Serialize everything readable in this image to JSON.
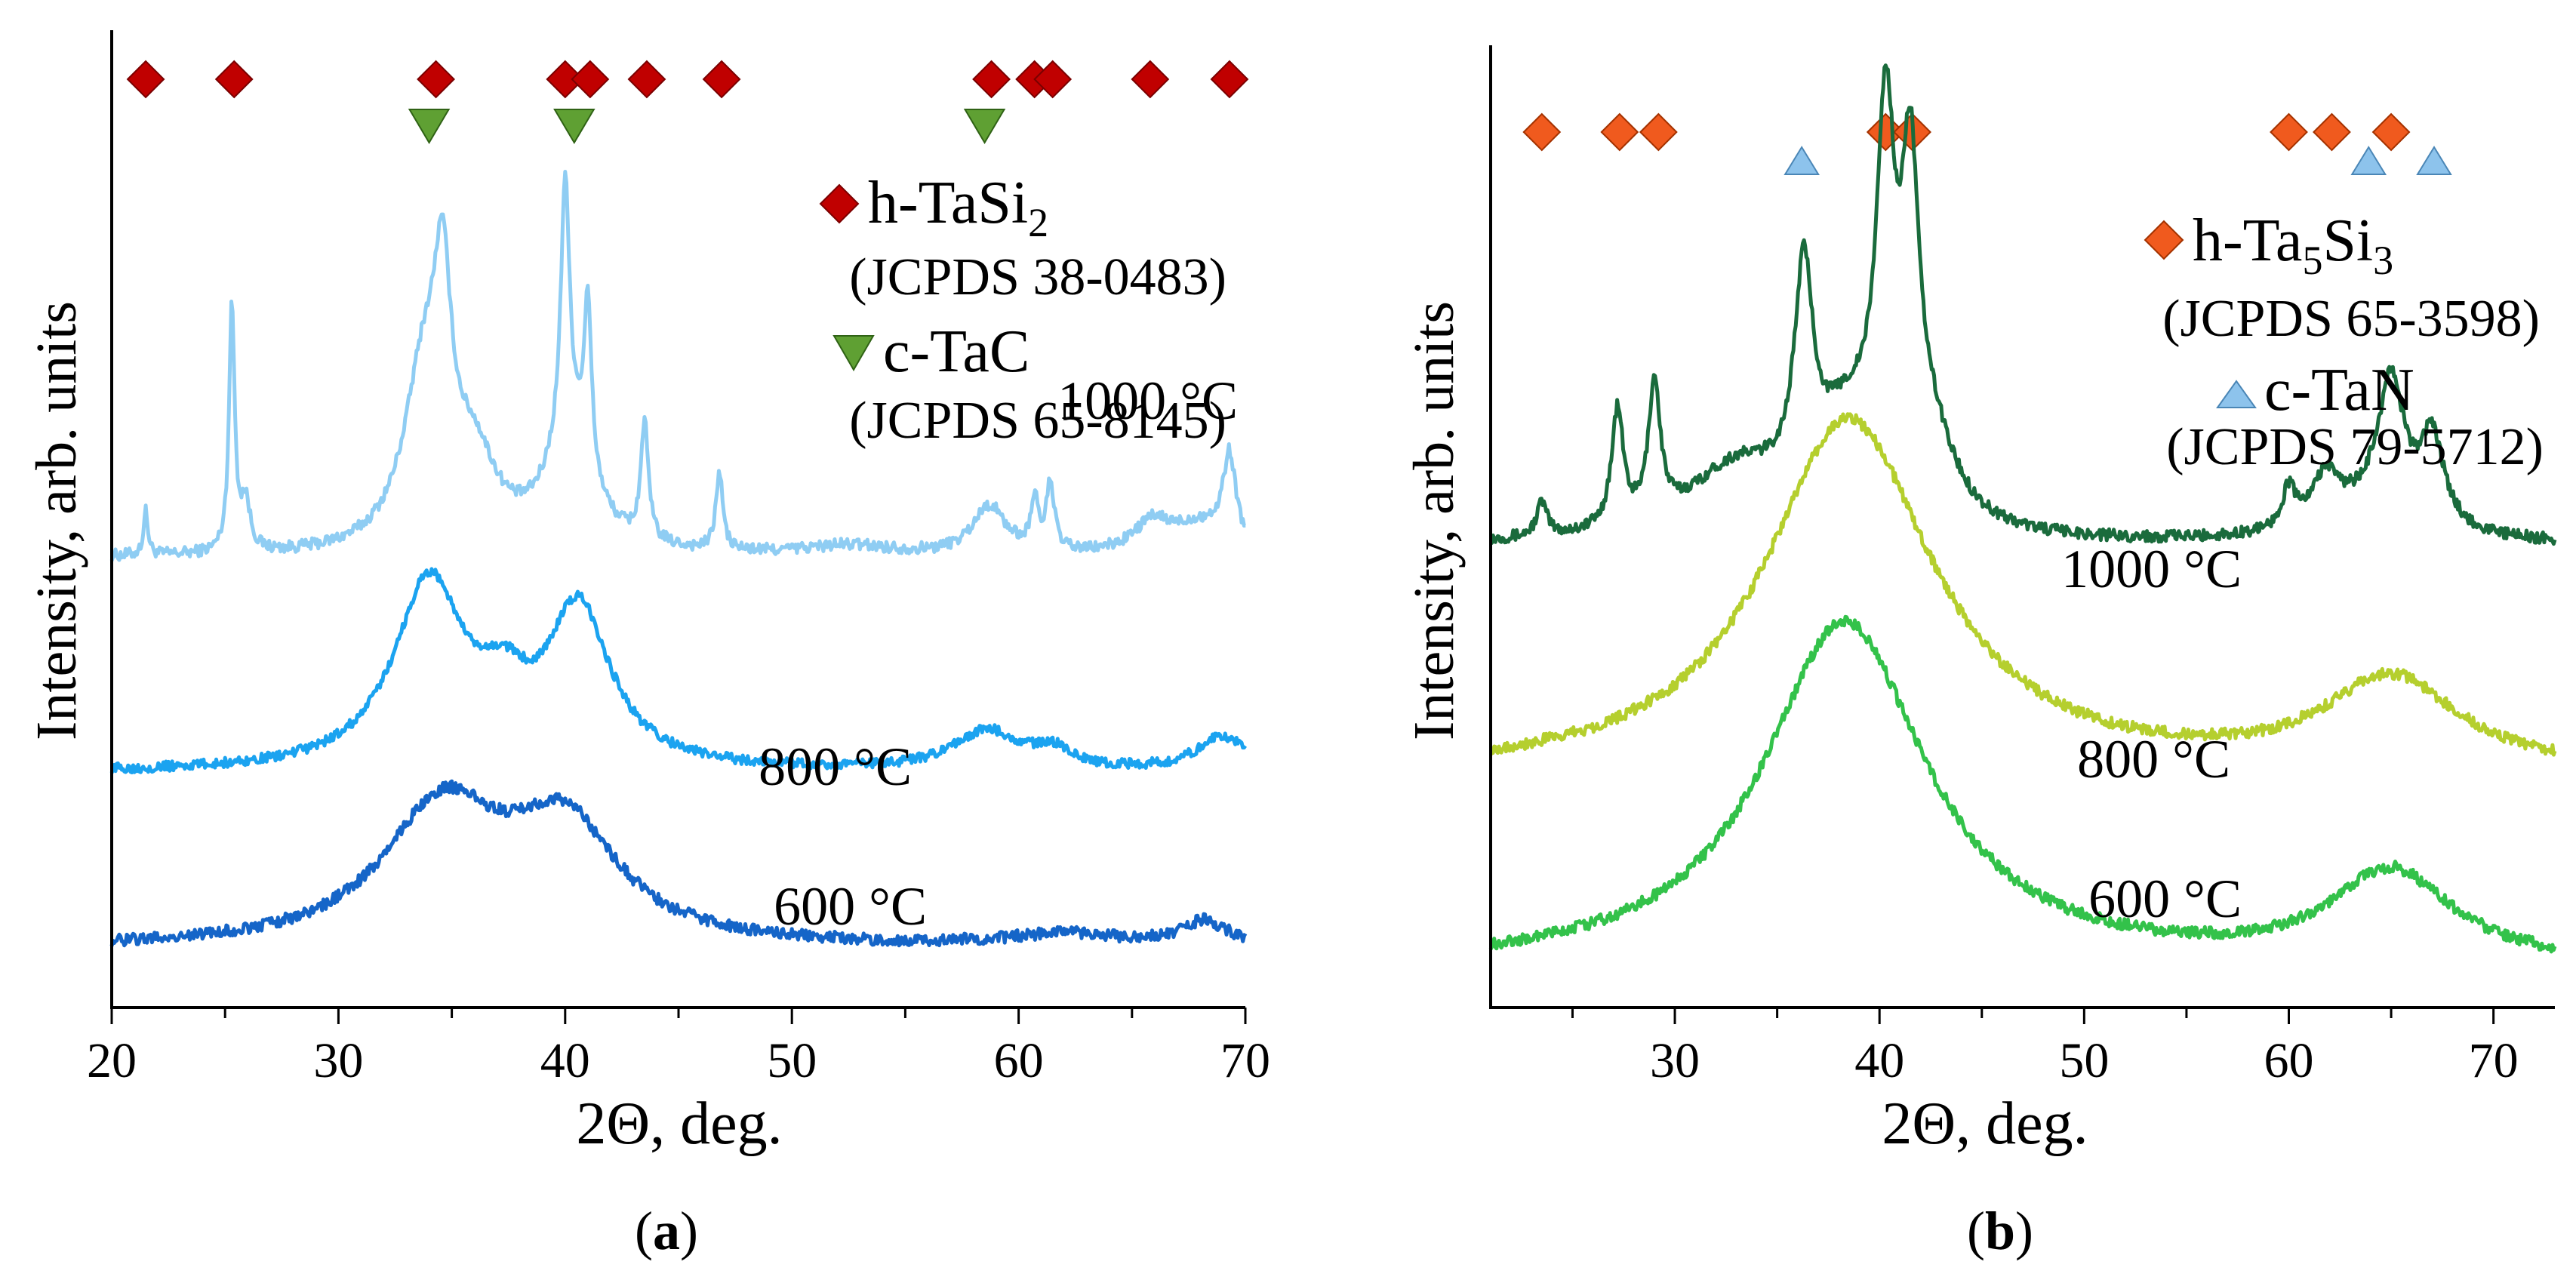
{
  "chart_data": [
    {
      "type": "line",
      "panel_label": "(a)",
      "xlabel": "2Θ, deg.",
      "ylabel": "Intensity, arb. units",
      "xlim": [
        20,
        70
      ],
      "x_ticks": [
        20,
        30,
        40,
        50,
        60,
        70
      ],
      "y_ticks_labeled": false,
      "series": [
        {
          "name": "1000 °C",
          "color": "#8fcdf3",
          "baseline": 0.46,
          "noise": 0.006,
          "peaks": [
            [
              21.5,
              0.045,
              0.12
            ],
            [
              25.3,
              0.25,
              0.15
            ],
            [
              25.9,
              0.05,
              0.25
            ],
            [
              33.8,
              0.18,
              1.1
            ],
            [
              34.6,
              0.19,
              0.45
            ],
            [
              36.0,
              0.08,
              1.2
            ],
            [
              40.0,
              0.26,
              0.22
            ],
            [
              41.0,
              0.17,
              0.2
            ],
            [
              40.2,
              0.12,
              1.2
            ],
            [
              43.5,
              0.12,
              0.2
            ],
            [
              46.8,
              0.08,
              0.18
            ],
            [
              52.5,
              0.01,
              2.5
            ],
            [
              58.7,
              0.05,
              0.9
            ],
            [
              60.7,
              0.05,
              0.2
            ],
            [
              61.4,
              0.07,
              0.2
            ],
            [
              65.9,
              0.03,
              1.0
            ],
            [
              69.3,
              0.09,
              0.35
            ],
            [
              68.0,
              0.03,
              1.5
            ]
          ]
        },
        {
          "name": "800 °C",
          "color": "#1ba3f0",
          "baseline": 0.24,
          "noise": 0.005,
          "peaks": [
            [
              34.0,
              0.19,
              1.9
            ],
            [
              40.6,
              0.16,
              1.7
            ],
            [
              37.3,
              0.05,
              1.2
            ],
            [
              58.6,
              0.04,
              1.8
            ],
            [
              61.5,
              0.018,
              1.0
            ],
            [
              69.0,
              0.035,
              1.4
            ]
          ]
        },
        {
          "name": "600 °C",
          "color": "#1565c8",
          "baseline": 0.06,
          "noise": 0.006,
          "peaks": [
            [
              34.6,
              0.14,
              3.2
            ],
            [
              40.0,
              0.115,
              2.8
            ],
            [
              62.0,
              0.012,
              3.0
            ],
            [
              68.2,
              0.025,
              1.3
            ]
          ]
        }
      ],
      "series_labels": [
        "1000 °C",
        "800 °C",
        "600 °C"
      ],
      "markers": {
        "h_TaSi2": [
          21.5,
          25.4,
          34.3,
          40.0,
          41.1,
          43.6,
          46.9,
          58.8,
          60.7,
          61.5,
          65.8,
          69.3
        ],
        "c_TaC": [
          34.0,
          40.4,
          58.5
        ]
      },
      "legend": {
        "position": "top-right",
        "entries": [
          {
            "symbol": "diamond",
            "color": "#c00000",
            "label": "h-TaSi",
            "sub": "2",
            "ref": "(JCPDS 38-0483)"
          },
          {
            "symbol": "triangle-down",
            "color": "#5fa033",
            "label": "c-TaC",
            "sub": "",
            "ref": "(JCPDS 65-8145)"
          }
        ]
      }
    },
    {
      "type": "line",
      "panel_label": "(b)",
      "xlabel": "2Θ, deg.",
      "ylabel": "Intensity, arb. units",
      "xlim": [
        21,
        73
      ],
      "x_ticks": [
        30,
        40,
        50,
        60,
        70
      ],
      "y_ticks_labeled": false,
      "series": [
        {
          "name": "1000 °C",
          "color": "#1a6b3c",
          "baseline": 0.48,
          "noise": 0.006,
          "peaks": [
            [
              23.5,
              0.035,
              0.3
            ],
            [
              27.2,
              0.12,
              0.35
            ],
            [
              29.0,
              0.14,
              0.35
            ],
            [
              33.0,
              0.07,
              3.0
            ],
            [
              36.3,
              0.22,
              0.55
            ],
            [
              38.5,
              0.1,
              2.0
            ],
            [
              40.3,
              0.36,
              0.55
            ],
            [
              41.5,
              0.3,
              0.5
            ],
            [
              42.5,
              0.08,
              1.5
            ],
            [
              60.0,
              0.04,
              0.4
            ],
            [
              61.8,
              0.05,
              0.8
            ],
            [
              65.0,
              0.14,
              0.8
            ],
            [
              67.0,
              0.09,
              0.7
            ],
            [
              64.0,
              0.03,
              3.0
            ]
          ]
        },
        {
          "name": "800 °C",
          "color": "#b5cf2e",
          "baseline": 0.24,
          "noise": 0.006,
          "peaks": [
            [
              38.5,
              0.37,
              5.0
            ],
            [
              65.0,
              0.095,
              4.0
            ]
          ]
        },
        {
          "name": "600 °C",
          "color": "#33c24a",
          "baseline": 0.04,
          "noise": 0.006,
          "peaks": [
            [
              38.3,
              0.36,
              4.8
            ],
            [
              65.0,
              0.095,
              3.6
            ]
          ]
        }
      ],
      "series_labels": [
        "1000 °C",
        "800 °C",
        "600 °C"
      ],
      "markers": {
        "h_Ta5Si3": [
          23.5,
          27.3,
          29.2,
          40.3,
          41.6,
          60.0,
          62.1,
          65.0
        ],
        "c_TaN": [
          36.2,
          63.9,
          67.1
        ]
      },
      "legend": {
        "position": "top-right",
        "entries": [
          {
            "symbol": "diamond",
            "color": "#f05a1e",
            "label": "h-Ta",
            "sub": "5",
            "label2": "Si",
            "sub2": "3",
            "ref": "(JCPDS 65-3598)"
          },
          {
            "symbol": "triangle-up",
            "color": "#8dc3ec",
            "label": "c-TaN",
            "sub": "",
            "ref": "(JCPDS 79-5712)"
          }
        ]
      }
    }
  ]
}
